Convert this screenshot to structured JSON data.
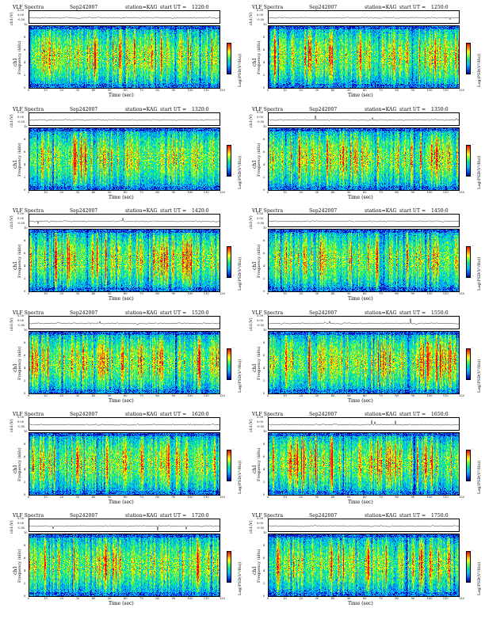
{
  "header": {
    "title": "VLF Spectra",
    "date": "Sep242007",
    "station": "station=KAG",
    "start_prefix": "start  UT  ="
  },
  "labels": {
    "ts_ylabel": "ch1(V)",
    "spec_ylabel_ch": "ch1",
    "spec_ylabel_freq": "Frequency  (kHz)",
    "xlabel": "Time  (sec)",
    "cbar_label": "Log(PSD(V²/Hz))"
  },
  "ts_ticks": [
    "0.50",
    "0.00",
    "-0.50"
  ],
  "freq_ticks": [
    "10",
    "8",
    "6",
    "4",
    "2",
    "0"
  ],
  "time_ticks": [
    "0",
    "10",
    "20",
    "30",
    "40",
    "50",
    "60",
    "70",
    "80",
    "90",
    "100",
    "110",
    "120"
  ],
  "cbar_ticks": [
    "-",
    "-"
  ],
  "panels": [
    {
      "start_ut": "1220:0"
    },
    {
      "start_ut": "1250:0"
    },
    {
      "start_ut": "1320:0"
    },
    {
      "start_ut": "1350:0"
    },
    {
      "start_ut": "1420:0"
    },
    {
      "start_ut": "1450:0"
    },
    {
      "start_ut": "1520:0"
    },
    {
      "start_ut": "1550:0"
    },
    {
      "start_ut": "1620:0"
    },
    {
      "start_ut": "1650:0"
    },
    {
      "start_ut": "1720:0"
    },
    {
      "start_ut": "1750:0"
    }
  ],
  "chart_data": {
    "type": "heatmap",
    "title": "VLF Spectra",
    "x_axis": {
      "label": "Time  (sec)",
      "range": [
        0,
        120
      ]
    },
    "y_axis": {
      "label": "Frequency  (kHz)",
      "range": [
        0,
        10
      ]
    },
    "ts_axis": {
      "label": "ch1(V)",
      "range": [
        -0.5,
        0.5
      ]
    },
    "colorbar": {
      "label": "Log(PSD(V²/Hz))",
      "colors": [
        "#0000a0",
        "#0060ff",
        "#00c0ff",
        "#00e0a0",
        "#60ff40",
        "#ffff00",
        "#ff8000",
        "#ff0000"
      ]
    },
    "panel_count": 12,
    "layout": "6 rows x 2 columns"
  }
}
